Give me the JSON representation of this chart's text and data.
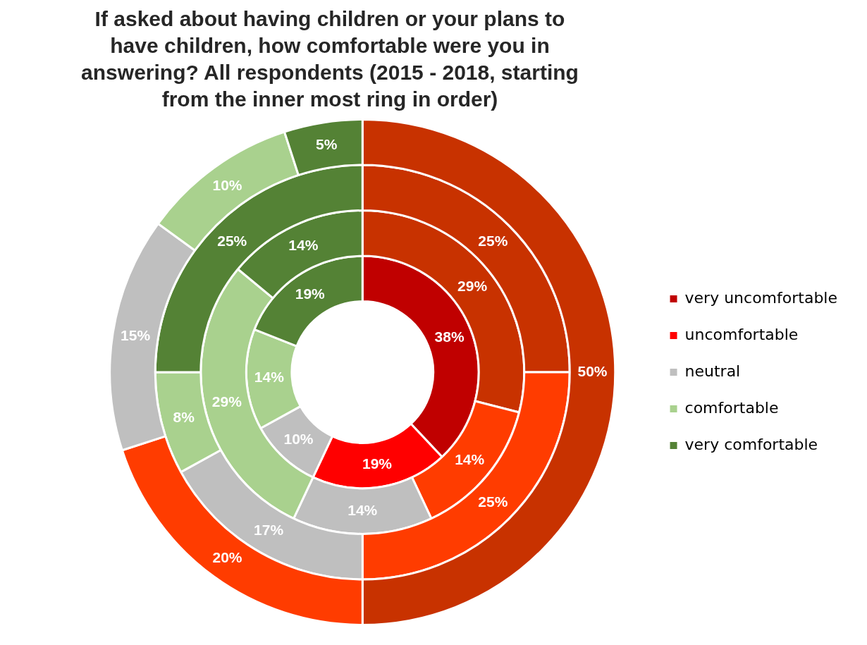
{
  "chart_data": {
    "type": "donut",
    "title": "If asked about having children or your  plans to have children, how comfortable were you in answering? All respondents (2015 - 2018,  starting from the inner most ring in order)",
    "categories": [
      "very uncomfortable",
      "uncomfortable",
      "neutral",
      "comfortable",
      "very comfortable"
    ],
    "series": [
      {
        "values": [
          38,
          19,
          10,
          14,
          19
        ],
        "value_labels": [
          "38%",
          "19%",
          "10%",
          "14%",
          "19%"
        ],
        "colors": [
          "#c00000",
          "#ff0000",
          "#bfbfbf",
          "#a9d18e",
          "#548235"
        ]
      },
      {
        "values": [
          29,
          14,
          14,
          29,
          14
        ],
        "value_labels": [
          "29%",
          "14%",
          "14%",
          "29%",
          "14%"
        ],
        "colors": [
          "#c83200",
          "#ff3c00",
          "#bfbfbf",
          "#a9d18e",
          "#548235"
        ]
      },
      {
        "values": [
          25,
          25,
          17,
          8,
          25
        ],
        "value_labels": [
          "25%",
          "25%",
          "17%",
          "8%",
          "25%"
        ],
        "colors": [
          "#c83200",
          "#ff3c00",
          "#bfbfbf",
          "#a9d18e",
          "#548235"
        ]
      },
      {
        "values": [
          50,
          20,
          15,
          10,
          5
        ],
        "value_labels": [
          "50%",
          "20%",
          "15%",
          "10%",
          "5%"
        ],
        "colors": [
          "#c83200",
          "#ff3c00",
          "#bfbfbf",
          "#a9d18e",
          "#548235"
        ]
      }
    ],
    "legend": "right"
  }
}
